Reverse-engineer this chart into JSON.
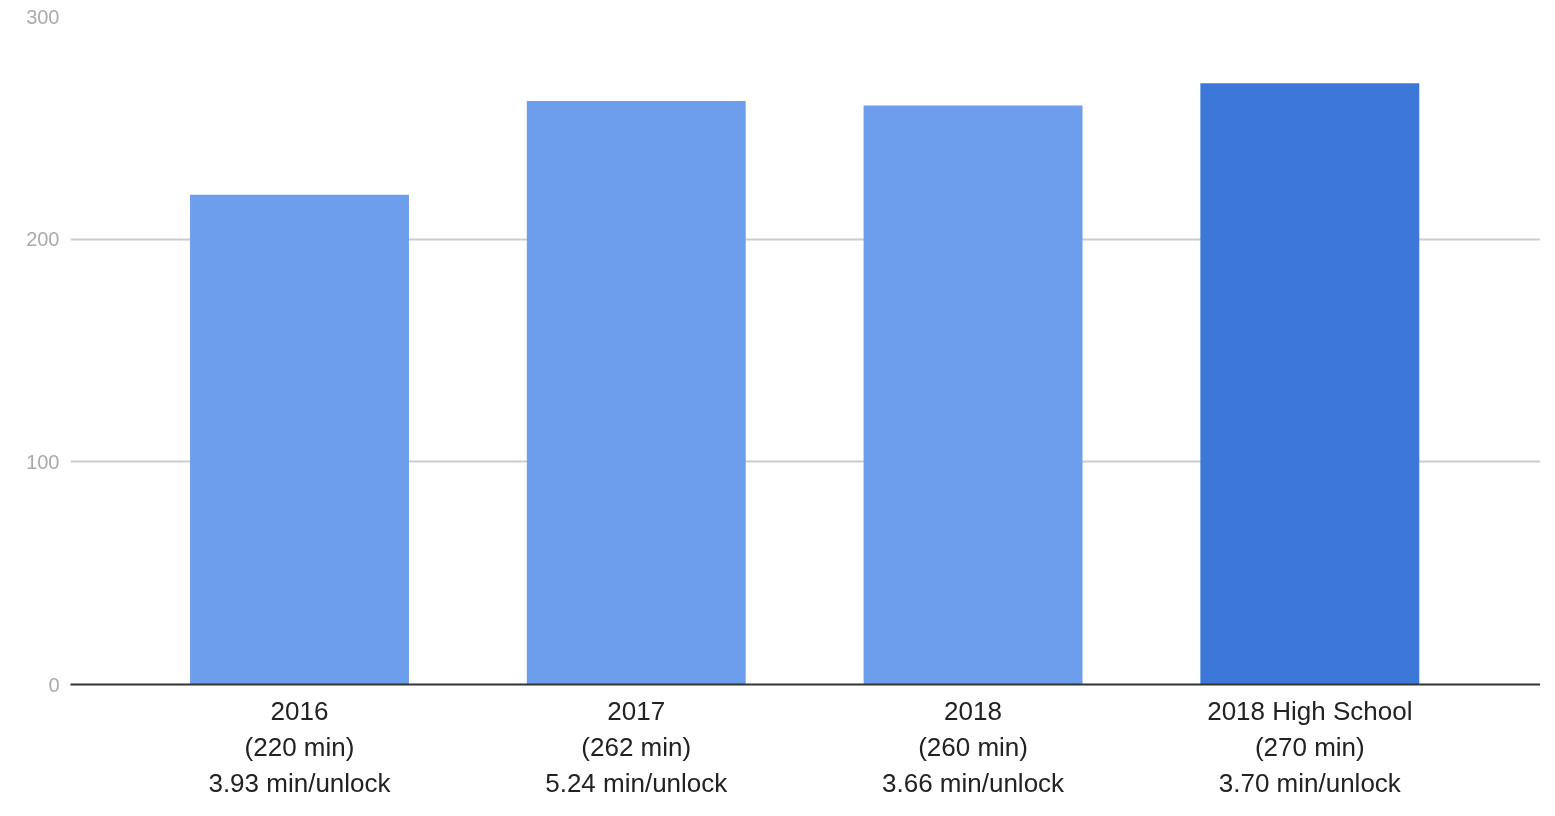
{
  "chart_data": {
    "type": "bar",
    "categories": [
      "2016\n(220 min)\n3.93 min/unlock",
      "2017\n(262 min)\n5.24 min/unlock",
      "2018\n(260 min)\n3.66 min/unlock",
      "2018 High School\n(270 min)\n3.70 min/unlock"
    ],
    "values": [
      220,
      262,
      260,
      270
    ],
    "colors": [
      "#6d9eeb",
      "#6d9eeb",
      "#6d9eeb",
      "#3c78d8"
    ],
    "ylim": [
      0,
      300
    ],
    "yticks": [
      0,
      100,
      200,
      300
    ],
    "grid": "y"
  }
}
